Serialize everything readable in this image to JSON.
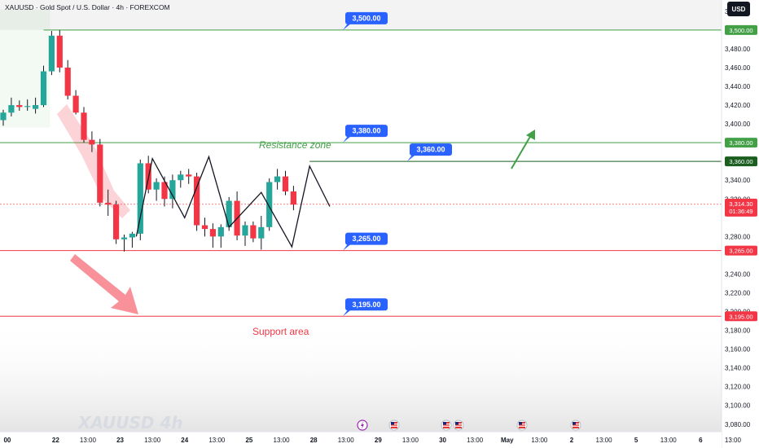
{
  "header": {
    "title": "XAUUSD · Gold Spot / U.S. Dollar · 4h · FOREXCOM",
    "currency_button": "USD"
  },
  "watermark": "XAUUSD 4h",
  "colors": {
    "bull": "#26a69a",
    "bear": "#f23645",
    "green_line": "#43a047",
    "dark_green_line": "#1b5e20",
    "red_line": "#f23645",
    "callout": "#2962ff",
    "axis_text": "#131722",
    "grid": "#f0f3fa"
  },
  "chart_data": {
    "type": "candlestick",
    "y_axis": {
      "ticks": [
        "3,520.00",
        "3,480.00",
        "3,460.00",
        "3,440.00",
        "3,420.00",
        "3,400.00",
        "3,340.00",
        "3,320.00",
        "3,280.00",
        "3,240.00",
        "3,220.00",
        "3,200.00",
        "3,180.00",
        "3,160.00",
        "3,140.00",
        "3,120.00",
        "3,100.00",
        "3,080.00"
      ],
      "tick_values": [
        3520,
        3480,
        3460,
        3440,
        3420,
        3400,
        3340,
        3320,
        3280,
        3240,
        3220,
        3200,
        3180,
        3160,
        3140,
        3120,
        3100,
        3080
      ],
      "ylim": [
        3072,
        3532
      ]
    },
    "x_axis": {
      "labels": [
        "00",
        "22",
        "13:00",
        "23",
        "13:00",
        "24",
        "13:00",
        "25",
        "13:00",
        "28",
        "13:00",
        "29",
        "13:00",
        "30",
        "13:00",
        "May",
        "13:00",
        "2",
        "13:00",
        "5",
        "13:00",
        "6",
        "13:00"
      ],
      "label_pos": [
        0.5,
        6.5,
        10.5,
        14.5,
        18.5,
        22.5,
        26.5,
        30.5,
        34.5,
        38.5,
        42.5,
        46.5,
        50.5,
        54.5,
        58.5,
        62.5,
        66.5,
        70.5,
        74.5,
        78.5,
        82.5,
        86.5,
        90.5
      ]
    },
    "candles": [
      {
        "o": 3404,
        "h": 3415,
        "l": 3398,
        "c": 3412
      },
      {
        "o": 3412,
        "h": 3428,
        "l": 3408,
        "c": 3420
      },
      {
        "o": 3420,
        "h": 3425,
        "l": 3414,
        "c": 3418
      },
      {
        "o": 3418,
        "h": 3426,
        "l": 3414,
        "c": 3419
      },
      {
        "o": 3416,
        "h": 3428,
        "l": 3411,
        "c": 3420
      },
      {
        "o": 3420,
        "h": 3462,
        "l": 3418,
        "c": 3456
      },
      {
        "o": 3456,
        "h": 3499,
        "l": 3452,
        "c": 3494
      },
      {
        "o": 3494,
        "h": 3500,
        "l": 3455,
        "c": 3460
      },
      {
        "o": 3460,
        "h": 3468,
        "l": 3426,
        "c": 3430
      },
      {
        "o": 3430,
        "h": 3436,
        "l": 3410,
        "c": 3412
      },
      {
        "o": 3412,
        "h": 3418,
        "l": 3380,
        "c": 3383
      },
      {
        "o": 3383,
        "h": 3392,
        "l": 3370,
        "c": 3378
      },
      {
        "o": 3378,
        "h": 3384,
        "l": 3312,
        "c": 3316
      },
      {
        "o": 3316,
        "h": 3330,
        "l": 3302,
        "c": 3314
      },
      {
        "o": 3314,
        "h": 3318,
        "l": 3272,
        "c": 3277
      },
      {
        "o": 3277,
        "h": 3282,
        "l": 3264,
        "c": 3279
      },
      {
        "o": 3279,
        "h": 3285,
        "l": 3268,
        "c": 3283
      },
      {
        "o": 3283,
        "h": 3362,
        "l": 3276,
        "c": 3358
      },
      {
        "o": 3358,
        "h": 3366,
        "l": 3326,
        "c": 3330
      },
      {
        "o": 3330,
        "h": 3342,
        "l": 3318,
        "c": 3338
      },
      {
        "o": 3338,
        "h": 3344,
        "l": 3312,
        "c": 3320
      },
      {
        "o": 3320,
        "h": 3346,
        "l": 3310,
        "c": 3340
      },
      {
        "o": 3340,
        "h": 3350,
        "l": 3332,
        "c": 3346
      },
      {
        "o": 3346,
        "h": 3352,
        "l": 3336,
        "c": 3344
      },
      {
        "o": 3344,
        "h": 3348,
        "l": 3286,
        "c": 3292
      },
      {
        "o": 3292,
        "h": 3300,
        "l": 3280,
        "c": 3288
      },
      {
        "o": 3288,
        "h": 3294,
        "l": 3268,
        "c": 3280
      },
      {
        "o": 3280,
        "h": 3293,
        "l": 3268,
        "c": 3290
      },
      {
        "o": 3290,
        "h": 3322,
        "l": 3286,
        "c": 3318
      },
      {
        "o": 3318,
        "h": 3328,
        "l": 3276,
        "c": 3281
      },
      {
        "o": 3281,
        "h": 3296,
        "l": 3270,
        "c": 3292
      },
      {
        "o": 3292,
        "h": 3296,
        "l": 3274,
        "c": 3278
      },
      {
        "o": 3278,
        "h": 3302,
        "l": 3266,
        "c": 3290
      },
      {
        "o": 3290,
        "h": 3342,
        "l": 3286,
        "c": 3338
      },
      {
        "o": 3338,
        "h": 3352,
        "l": 3330,
        "c": 3344
      },
      {
        "o": 3344,
        "h": 3350,
        "l": 3324,
        "c": 3328
      },
      {
        "o": 3328,
        "h": 3334,
        "l": 3308,
        "c": 3314
      }
    ],
    "levels": [
      {
        "value": 3500,
        "label": "3,500.00",
        "color": "#43a047"
      },
      {
        "value": 3380,
        "label": "3,380.00",
        "color": "#43a047"
      },
      {
        "value": 3360,
        "label": "3,360.00",
        "color": "#1b5e20"
      },
      {
        "value": 3265,
        "label": "3,265.00",
        "color": "#f23645"
      },
      {
        "value": 3195,
        "label": "3,195.00",
        "color": "#f23645"
      }
    ],
    "current_price": {
      "value": 3314.3,
      "label": "3,314.30",
      "countdown": "01:36:49"
    },
    "callouts": [
      {
        "label": "3,500.00",
        "value": 3500
      },
      {
        "label": "3,380.00",
        "value": 3380
      },
      {
        "label": "3,360.00",
        "value": 3360
      },
      {
        "label": "3,265.00",
        "value": 3265
      },
      {
        "label": "3,195.00",
        "value": 3195
      }
    ],
    "annotations": {
      "resistance": "Resistance zone",
      "support": "Support area"
    },
    "zigzag": [
      {
        "i": 16.5,
        "v": 3280
      },
      {
        "i": 18.5,
        "v": 3363
      },
      {
        "i": 22.5,
        "v": 3300
      },
      {
        "i": 25.5,
        "v": 3365
      },
      {
        "i": 28,
        "v": 3290
      },
      {
        "i": 32,
        "v": 3327
      },
      {
        "i": 35.8,
        "v": 3269
      },
      {
        "i": 38,
        "v": 3355
      },
      {
        "i": 40.5,
        "v": 3312
      }
    ]
  }
}
